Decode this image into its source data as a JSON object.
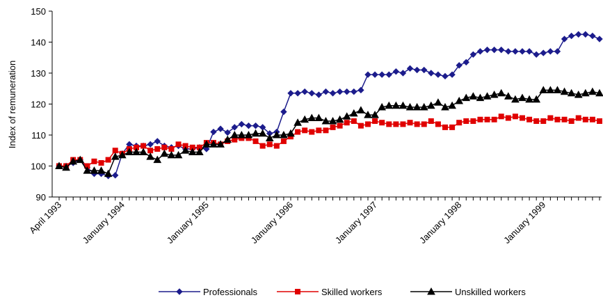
{
  "chart_data": {
    "type": "line",
    "y_label": "Index of remuneration",
    "categories": [
      "April 1993",
      null,
      null,
      null,
      null,
      null,
      null,
      null,
      null,
      "January 1994",
      null,
      null,
      null,
      null,
      null,
      null,
      null,
      null,
      null,
      null,
      null,
      "January 1995",
      null,
      null,
      null,
      null,
      null,
      null,
      null,
      null,
      null,
      null,
      null,
      "January 1996",
      null,
      null,
      null,
      null,
      null,
      null,
      null,
      null,
      null,
      null,
      null,
      "January 1997",
      null,
      null,
      null,
      null,
      null,
      null,
      null,
      null,
      null,
      null,
      null,
      "January 1998",
      null,
      null,
      null,
      null,
      null,
      null,
      null,
      null,
      null,
      null,
      null,
      "January 1999",
      null,
      null,
      null,
      null,
      null,
      null,
      null,
      null
    ],
    "series": [
      {
        "name": "Professionals",
        "color": "#1c1c8c",
        "marker": "diamond",
        "values": [
          100,
          100,
          101,
          102,
          99.5,
          97.5,
          97.5,
          96.8,
          97,
          104,
          107,
          106.5,
          106.5,
          107,
          108,
          106.5,
          106,
          106.5,
          105.5,
          105.5,
          106,
          105.5,
          111,
          112,
          110.8,
          112.5,
          113.5,
          113,
          113,
          112.5,
          110.5,
          111,
          117.5,
          123.5,
          123.5,
          124,
          123.5,
          123,
          124,
          123.5,
          124,
          124,
          124,
          124.5,
          129.5,
          129.5,
          129.5,
          129.5,
          130.5,
          130,
          131.5,
          131,
          131,
          130,
          129.5,
          129,
          129.5,
          132.5,
          133.5,
          136,
          137,
          137.5,
          137.5,
          137.5,
          137,
          137,
          137,
          137,
          136,
          136.5,
          137,
          137,
          141,
          142,
          142.5,
          142.5,
          142,
          141
        ]
      },
      {
        "name": "Skilled workers",
        "color": "#e00000",
        "marker": "square",
        "values": [
          100,
          100,
          102,
          102,
          100,
          101.5,
          101,
          102,
          105,
          104,
          105.5,
          106,
          106.5,
          105,
          105.5,
          106,
          105.5,
          107,
          106.5,
          106,
          106,
          107.5,
          107.5,
          107,
          108,
          108.5,
          109,
          109,
          108,
          106.5,
          107,
          106.5,
          108,
          109.5,
          111,
          111.5,
          111,
          111.5,
          111.5,
          112.5,
          113,
          114,
          114.5,
          113,
          113.5,
          114.5,
          114,
          113.5,
          113.5,
          113.5,
          114,
          113.5,
          113.5,
          114.5,
          113.5,
          112.5,
          112.5,
          114,
          114.5,
          114.5,
          115,
          115,
          115,
          116,
          115.5,
          116,
          115.5,
          115,
          114.5,
          114.5,
          115.5,
          115,
          115,
          114.5,
          115.5,
          115,
          115,
          114.5
        ]
      },
      {
        "name": "Unskilled workers",
        "color": "#000000",
        "marker": "triangle",
        "values": [
          100,
          99.5,
          101.5,
          102,
          98.5,
          98.5,
          98.5,
          97.5,
          103,
          103.5,
          104.5,
          104.5,
          104.5,
          103,
          102,
          104,
          103.5,
          103.5,
          105,
          104.5,
          104.5,
          107,
          107,
          107,
          108.5,
          110,
          110,
          110,
          110.5,
          110.5,
          109,
          110,
          110,
          110.5,
          114,
          115,
          115.5,
          115.5,
          114.5,
          114.5,
          115,
          116,
          117,
          118,
          116.5,
          116.5,
          119,
          119.5,
          119.5,
          119.5,
          119,
          119,
          119,
          119.5,
          120.5,
          119,
          119.5,
          121,
          122,
          122.5,
          122,
          122.5,
          123,
          123.5,
          122.5,
          121.5,
          122,
          121.5,
          121.5,
          124.5,
          124.5,
          124.5,
          124,
          123.5,
          123,
          123.5,
          124,
          123.5
        ]
      }
    ],
    "ylim": [
      90,
      150
    ],
    "yticks": [
      90,
      100,
      110,
      120,
      130,
      140,
      150
    ],
    "grid": false,
    "legend": "bottom"
  }
}
